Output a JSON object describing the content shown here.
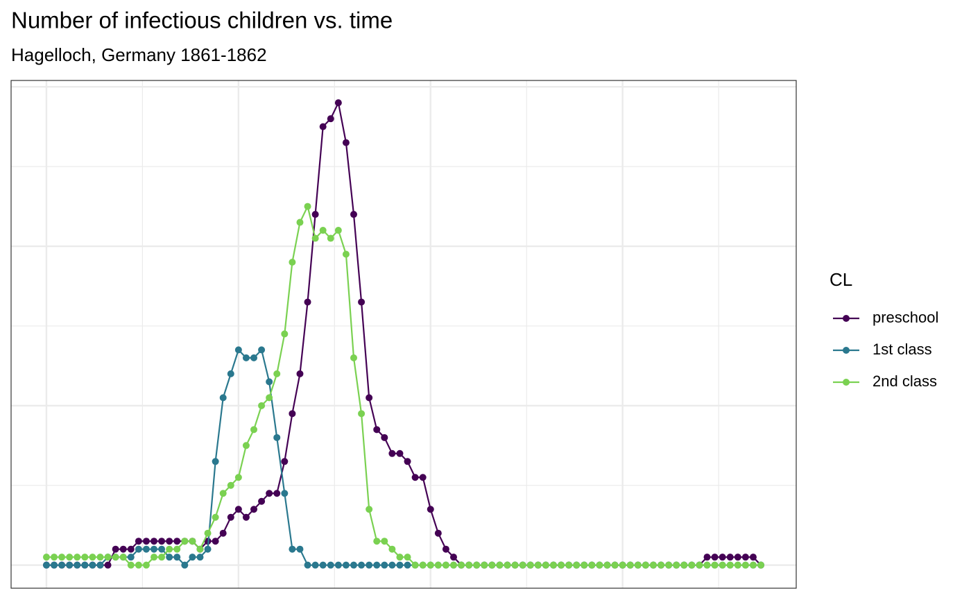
{
  "chart_data": {
    "type": "line",
    "title": "Number of infectious children vs. time",
    "subtitle": "Hagelloch, Germany 1861-1862",
    "legend_title": "CL",
    "legend_position": "right",
    "grid": true,
    "x": [
      0,
      1,
      2,
      3,
      4,
      5,
      6,
      7,
      8,
      9,
      10,
      11,
      12,
      13,
      14,
      15,
      16,
      17,
      18,
      19,
      20,
      21,
      22,
      23,
      24,
      25,
      26,
      27,
      28,
      29,
      30,
      31,
      32,
      33,
      34,
      35,
      36,
      37,
      38,
      39,
      40,
      41,
      42,
      43,
      44,
      45,
      46,
      47,
      48,
      49,
      50,
      51,
      52,
      53,
      54,
      55,
      56,
      57,
      58,
      59,
      60,
      61,
      62,
      63,
      64,
      65,
      66,
      67,
      68,
      69,
      70,
      71,
      72,
      73,
      74,
      75,
      76,
      77,
      78,
      79,
      80,
      81,
      82,
      83,
      84,
      85,
      86,
      87,
      88,
      89,
      90,
      91,
      92,
      93
    ],
    "xlim": [
      -4.6,
      97.6
    ],
    "xticks": [
      0,
      25,
      50,
      75
    ],
    "ylim": [
      -2.9,
      60.8
    ],
    "yticks": [
      0,
      20,
      40,
      60
    ],
    "series": [
      {
        "name": "preschool",
        "color": "#440154",
        "values": [
          0,
          0,
          0,
          0,
          0,
          0,
          0,
          0,
          0,
          2,
          2,
          2,
          3,
          3,
          3,
          3,
          3,
          3,
          3,
          3,
          2,
          3,
          3,
          4,
          6,
          7,
          6,
          7,
          8,
          9,
          9,
          13,
          19,
          24,
          33,
          44,
          55,
          56,
          58,
          53,
          44,
          33,
          21,
          17,
          16,
          14,
          14,
          13,
          11,
          11,
          7,
          4,
          2,
          1,
          0,
          0,
          0,
          0,
          0,
          0,
          0,
          0,
          0,
          0,
          0,
          0,
          0,
          0,
          0,
          0,
          0,
          0,
          0,
          0,
          0,
          0,
          0,
          0,
          0,
          0,
          0,
          0,
          0,
          0,
          0,
          0,
          1,
          1,
          1,
          1,
          1,
          1,
          1,
          0
        ]
      },
      {
        "name": "1st class",
        "color": "#2A788E",
        "values": [
          0,
          0,
          0,
          0,
          0,
          0,
          0,
          0,
          1,
          1,
          1,
          1,
          2,
          2,
          2,
          2,
          1,
          1,
          0,
          1,
          1,
          2,
          13,
          21,
          24,
          27,
          26,
          26,
          27,
          23,
          16,
          9,
          2,
          2,
          0,
          0,
          0,
          0,
          0,
          0,
          0,
          0,
          0,
          0,
          0,
          0,
          0,
          0,
          0,
          0,
          0,
          0,
          0,
          0,
          0,
          0,
          0,
          0,
          0,
          0,
          0,
          0,
          0,
          0,
          0,
          0,
          0,
          0,
          0,
          0,
          0,
          0,
          0,
          0,
          0,
          0,
          0,
          0,
          0,
          0,
          0,
          0,
          0,
          0,
          0,
          0,
          0,
          0,
          0,
          0,
          0,
          0,
          0,
          0
        ]
      },
      {
        "name": "2nd class",
        "color": "#7AD151",
        "values": [
          1,
          1,
          1,
          1,
          1,
          1,
          1,
          1,
          1,
          1,
          1,
          0,
          0,
          0,
          1,
          1,
          2,
          2,
          3,
          3,
          2,
          4,
          6,
          9,
          10,
          11,
          15,
          17,
          20,
          21,
          24,
          29,
          38,
          43,
          45,
          41,
          42,
          41,
          42,
          39,
          26,
          19,
          7,
          3,
          3,
          2,
          1,
          1,
          0,
          0,
          0,
          0,
          0,
          0,
          0,
          0,
          0,
          0,
          0,
          0,
          0,
          0,
          0,
          0,
          0,
          0,
          0,
          0,
          0,
          0,
          0,
          0,
          0,
          0,
          0,
          0,
          0,
          0,
          0,
          0,
          0,
          0,
          0,
          0,
          0,
          0,
          0,
          0,
          0,
          0,
          0,
          0,
          0,
          0
        ]
      }
    ]
  }
}
